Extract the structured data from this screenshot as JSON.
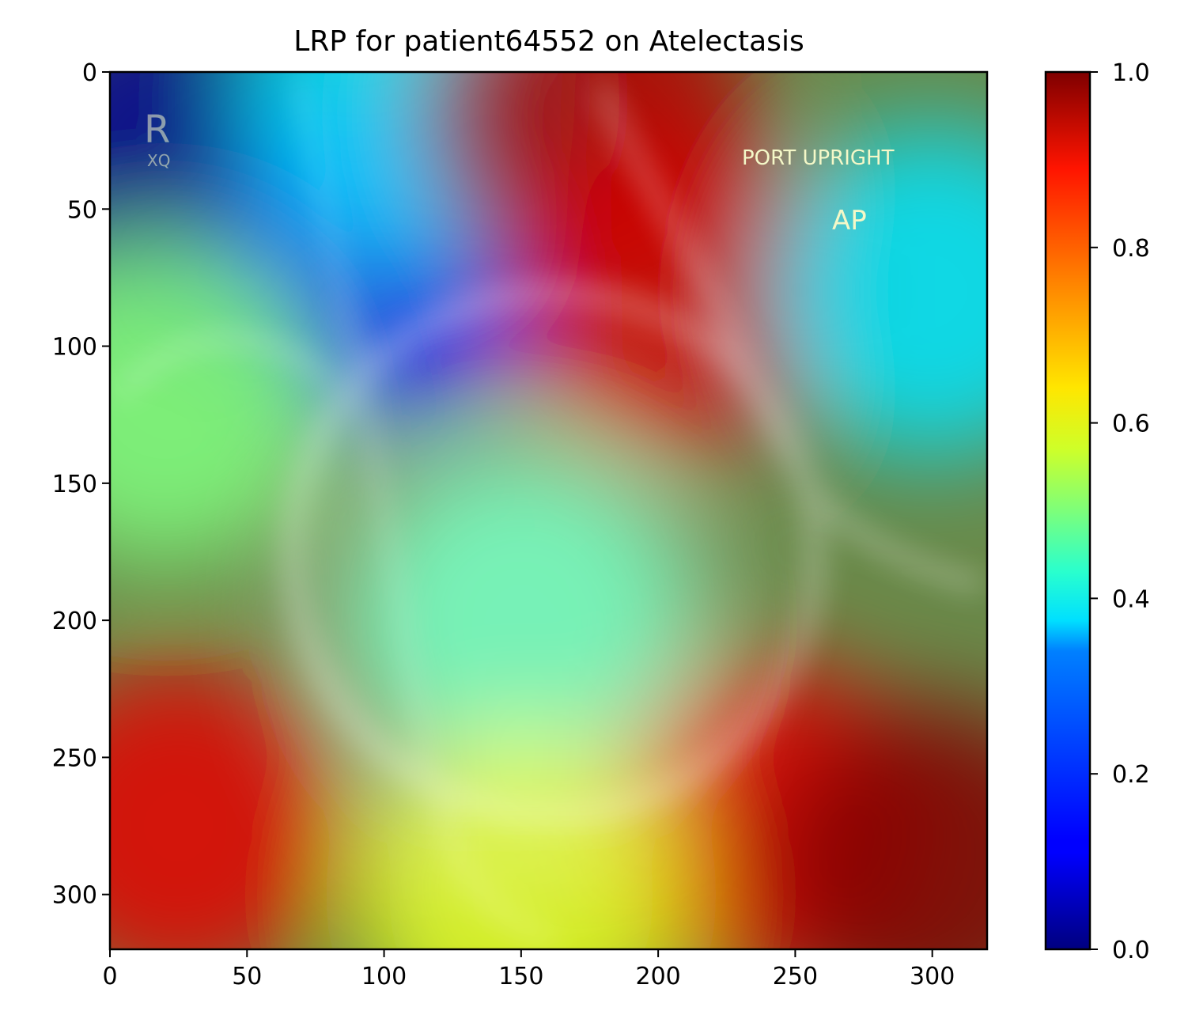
{
  "chart_data": {
    "type": "heatmap",
    "title": "LRP for patient64552 on Atelectasis",
    "xlabel": "",
    "ylabel": "",
    "x_ticks": [
      0,
      50,
      100,
      150,
      200,
      250,
      300
    ],
    "y_ticks": [
      0,
      50,
      100,
      150,
      200,
      250,
      300
    ],
    "xlim": [
      0,
      320
    ],
    "ylim": [
      320,
      0
    ],
    "colormap": "jet",
    "colorbar": {
      "range": [
        0.0,
        1.0
      ],
      "ticks": [
        0.0,
        0.2,
        0.4,
        0.6,
        0.8,
        1.0
      ],
      "tick_labels": [
        "0.0",
        "0.2",
        "0.4",
        "0.6",
        "0.8",
        "1.0"
      ]
    },
    "image_annotations": {
      "marker_top_left": "R",
      "marker_top_left_sub": "XQ",
      "label_port": "PORT UPRIGHT",
      "label_view": "AP"
    },
    "relevance_hotspots": [
      {
        "x": 20,
        "y": 30,
        "value": 0.02
      },
      {
        "x": 100,
        "y": 70,
        "value": 0.12
      },
      {
        "x": 110,
        "y": 10,
        "value": 0.35
      },
      {
        "x": 175,
        "y": 15,
        "value": 0.95
      },
      {
        "x": 205,
        "y": 80,
        "value": 0.92
      },
      {
        "x": 300,
        "y": 80,
        "value": 0.35
      },
      {
        "x": 20,
        "y": 120,
        "value": 0.5
      },
      {
        "x": 150,
        "y": 200,
        "value": 0.45
      },
      {
        "x": 25,
        "y": 275,
        "value": 0.9
      },
      {
        "x": 240,
        "y": 275,
        "value": 0.9
      },
      {
        "x": 300,
        "y": 290,
        "value": 1.0
      },
      {
        "x": 150,
        "y": 300,
        "value": 0.6
      }
    ]
  },
  "colors": {
    "jet_stops": [
      "#00007f",
      "#0000ff",
      "#007fff",
      "#00ffff",
      "#7fff7f",
      "#ffff00",
      "#ff7f00",
      "#ff0000",
      "#7f0000"
    ]
  }
}
